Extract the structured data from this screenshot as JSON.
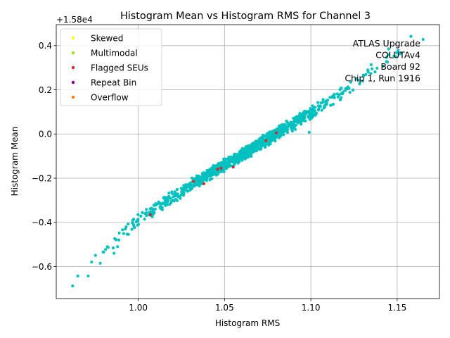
{
  "chart_data": {
    "type": "scatter",
    "title": "Histogram Mean vs Histogram RMS for Channel 3",
    "xlabel": "Histogram RMS",
    "ylabel": "Histogram Mean",
    "y_offset_label": "+1.58e4",
    "xlim": [
      0.9525,
      1.1745
    ],
    "ylim": [
      -0.745,
      0.495
    ],
    "xticks": [
      1.0,
      1.05,
      1.1,
      1.15
    ],
    "xtick_labels": [
      "1.00",
      "1.05",
      "1.10",
      "1.15"
    ],
    "yticks": [
      -0.6,
      -0.4,
      -0.2,
      0.0,
      0.2,
      0.4
    ],
    "ytick_labels": [
      "−0.6",
      "−0.4",
      "−0.2",
      "0.0",
      "0.2",
      "0.4"
    ],
    "grid": true,
    "legend_position": "top-left",
    "legend": [
      {
        "name": "Skewed",
        "color": "#ffff00"
      },
      {
        "name": "Multimodal",
        "color": "#99e600"
      },
      {
        "name": "Flagged SEUs",
        "color": "#d62728"
      },
      {
        "name": "Repeat Bin",
        "color": "#8b008b"
      },
      {
        "name": "Overflow",
        "color": "#ff7f0e"
      }
    ],
    "annotation_lines": [
      "ATLAS Upgrade",
      "COLUTAv4",
      "Board 92",
      "Chip 1, Run 1916"
    ],
    "series": [
      {
        "color": "#00c0c0",
        "trend": [
          [
            0.962,
            -0.69
          ],
          [
            0.975,
            -0.575
          ],
          [
            0.99,
            -0.455
          ],
          [
            1.0,
            -0.39
          ],
          [
            1.02,
            -0.285
          ],
          [
            1.04,
            -0.185
          ],
          [
            1.06,
            -0.095
          ],
          [
            1.08,
            0.0
          ],
          [
            1.1,
            0.095
          ],
          [
            1.12,
            0.195
          ],
          [
            1.14,
            0.32
          ],
          [
            1.165,
            0.425
          ]
        ],
        "extra_points": [
          [
            0.962,
            -0.688
          ],
          [
            0.965,
            -0.643
          ],
          [
            0.971,
            -0.643
          ],
          [
            0.973,
            -0.58
          ],
          [
            0.978,
            -0.585
          ],
          [
            0.98,
            -0.535
          ],
          [
            0.986,
            -0.54
          ],
          [
            0.988,
            -0.51
          ],
          [
            1.099,
            0.008
          ],
          [
            1.158,
            0.442
          ],
          [
            1.165,
            0.428
          ],
          [
            1.152,
            0.365
          ],
          [
            1.13,
            0.24
          ],
          [
            1.145,
            0.385
          ],
          [
            1.133,
            0.29
          ]
        ]
      },
      {
        "name": "Flagged SEUs",
        "color": "#d62728",
        "x": [
          1.007,
          1.032,
          1.038,
          1.046,
          1.048,
          1.055,
          1.074,
          1.08
        ],
        "y": [
          -0.365,
          -0.215,
          -0.225,
          -0.16,
          -0.155,
          -0.15,
          -0.03,
          0.005
        ]
      }
    ]
  }
}
